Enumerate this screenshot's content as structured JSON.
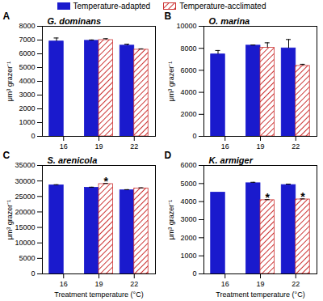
{
  "chart_data": [
    {
      "type": "bar",
      "panel": "A",
      "title": "G. dominans",
      "legend": "top",
      "categories": [
        "16",
        "19",
        "22"
      ],
      "series": [
        {
          "name": "Temperature-adapted",
          "color": "#1a1acd",
          "line_style": "solid",
          "values": [
            6900,
            6950,
            6600
          ],
          "errors": [
            250,
            60,
            100
          ]
        },
        {
          "name": "Temperature-acclimated",
          "color": "#cc3333",
          "line_style": "hatched",
          "values": [
            null,
            7000,
            6300
          ],
          "errors": [
            null,
            100,
            60
          ]
        }
      ],
      "ylabel": "μm³ grazer⁻¹",
      "ylim": [
        0,
        8000
      ],
      "yticks": [
        0,
        1000,
        2000,
        3000,
        4000,
        5000,
        6000,
        7000,
        8000
      ]
    },
    {
      "type": "bar",
      "panel": "B",
      "title": "O. marina",
      "categories": [
        "16",
        "19",
        "22"
      ],
      "series": [
        {
          "name": "Temperature-adapted",
          "color": "#1a1acd",
          "line_style": "solid",
          "values": [
            7450,
            8250,
            8000
          ],
          "errors": [
            350,
            50,
            800
          ]
        },
        {
          "name": "Temperature-acclimated",
          "color": "#cc3333",
          "line_style": "hatched",
          "values": [
            null,
            8050,
            6400
          ],
          "errors": [
            null,
            450,
            150
          ]
        }
      ],
      "ylabel": "μm³ grazer⁻¹",
      "ylim": [
        0,
        10000
      ],
      "yticks": [
        0,
        2000,
        4000,
        6000,
        8000,
        10000
      ]
    },
    {
      "type": "bar",
      "panel": "C",
      "title": "S. arenicola",
      "categories": [
        "16",
        "19",
        "22"
      ],
      "series": [
        {
          "name": "Temperature-adapted",
          "color": "#1a1acd",
          "line_style": "solid",
          "values": [
            28600,
            27800,
            27000
          ],
          "errors": [
            200,
            200,
            200
          ]
        },
        {
          "name": "Temperature-acclimated",
          "color": "#cc3333",
          "line_style": "hatched",
          "values": [
            null,
            29000,
            27600
          ],
          "errors": [
            null,
            200,
            200
          ]
        }
      ],
      "annotations": [
        {
          "text": "*",
          "x": "19",
          "series": "Temperature-acclimated"
        }
      ],
      "xlabel": "Treatment temperature (°C)",
      "ylabel": "μm³ grazer⁻¹",
      "ylim": [
        0,
        35000
      ],
      "yticks": [
        0,
        5000,
        10000,
        15000,
        20000,
        25000,
        30000,
        35000
      ]
    },
    {
      "type": "bar",
      "panel": "D",
      "title": "K. armiger",
      "categories": [
        "16",
        "19",
        "22"
      ],
      "series": [
        {
          "name": "Temperature-adapted",
          "color": "#1a1acd",
          "line_style": "solid",
          "values": [
            4500,
            5020,
            4920
          ],
          "errors": [
            null,
            50,
            50
          ]
        },
        {
          "name": "Temperature-acclimated",
          "color": "#cc3333",
          "line_style": "hatched",
          "values": [
            null,
            4080,
            4120
          ],
          "errors": [
            null,
            30,
            30
          ]
        }
      ],
      "annotations": [
        {
          "text": "*",
          "x": "19",
          "series": "Temperature-acclimated"
        },
        {
          "text": "*",
          "x": "22",
          "series": "Temperature-acclimated"
        }
      ],
      "xlabel": "Treatment temperature (°C)",
      "ylabel": "μm³ grazer⁻¹",
      "ylim": [
        0,
        6000
      ],
      "yticks": [
        0,
        1000,
        2000,
        3000,
        4000,
        5000,
        6000
      ]
    }
  ]
}
